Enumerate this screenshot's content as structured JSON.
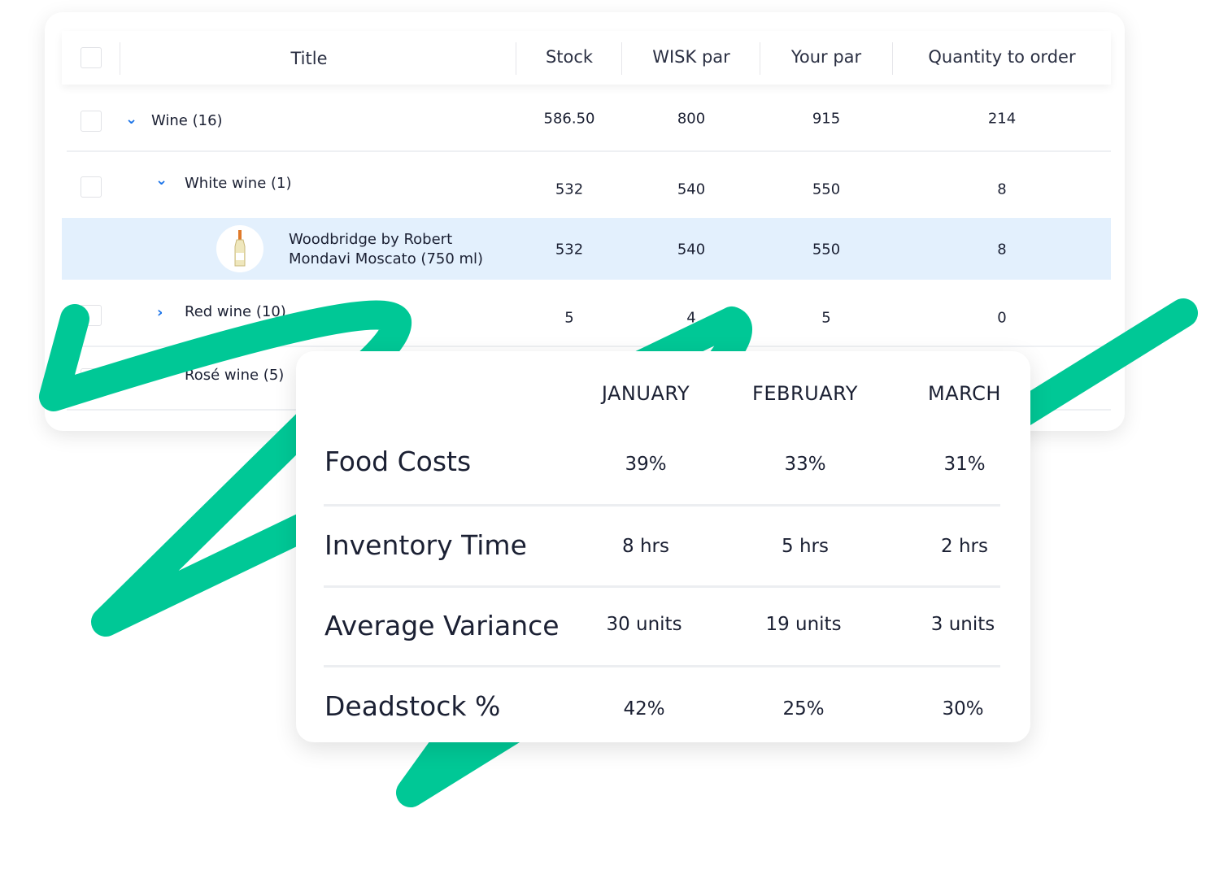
{
  "table": {
    "columns": [
      "Title",
      "Stock",
      "WISK par",
      "Your par",
      "Quantity to order"
    ],
    "rows": [
      {
        "label": "Wine (16)",
        "expand": "expanded",
        "stock": "586.50",
        "wisk_par": "800",
        "your_par": "915",
        "qty": "214"
      },
      {
        "label": "White wine (1)",
        "expand": "expanded",
        "stock": "532",
        "wisk_par": "540",
        "your_par": "550",
        "qty": "8"
      },
      {
        "label_line1": "Woodbridge by Robert",
        "label_line2": "Mondavi Moscato (750 ml)",
        "stock": "532",
        "wisk_par": "540",
        "your_par": "550",
        "qty": "8",
        "selected": true
      },
      {
        "label": "Red wine (10)",
        "expand": "collapsed",
        "stock": "5",
        "wisk_par": "4",
        "your_par": "5",
        "qty": "0"
      },
      {
        "label": "Rosé wine (5)"
      }
    ],
    "selected_row_color": "#E3F0FD",
    "chevron_color": "#1A73E8"
  },
  "metrics": {
    "months": [
      "JANUARY",
      "FEBRUARY",
      "MARCH"
    ],
    "rows": [
      {
        "label": "Food Costs",
        "values": [
          "39%",
          "33%",
          "31%"
        ]
      },
      {
        "label": "Inventory Time",
        "values": [
          "8 hrs",
          "5 hrs",
          "2 hrs"
        ]
      },
      {
        "label": "Average Variance",
        "values": [
          "30 units",
          "19 units",
          "3 units"
        ]
      },
      {
        "label": "Deadstock %",
        "values": [
          "42%",
          "25%",
          "30%"
        ]
      }
    ]
  },
  "accent_color": "#00C896"
}
